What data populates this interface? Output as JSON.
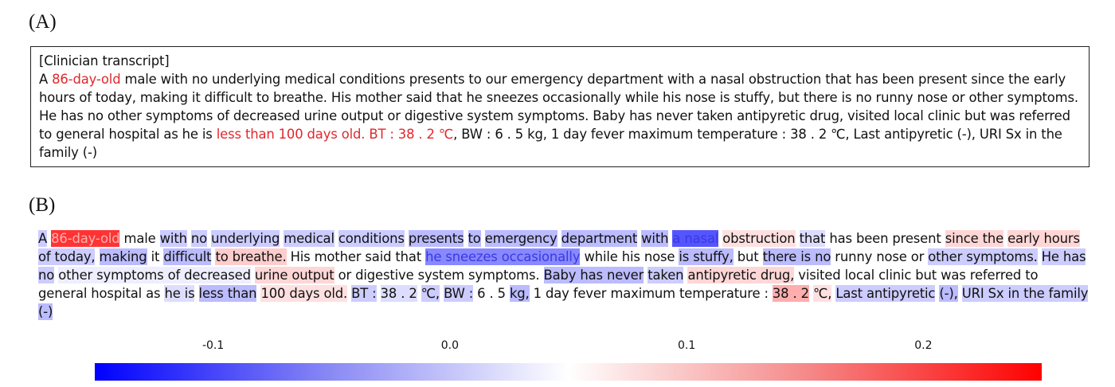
{
  "panel_a": {
    "label": "(A)",
    "header": "[Clinician transcript]",
    "segments": [
      {
        "t": "A ",
        "h": false
      },
      {
        "t": "86-day-old",
        "h": true
      },
      {
        "t": " male with no underlying medical conditions presents to our emergency department with a nasal obstruction that has been present since the early hours of today, making it difficult to breathe. His mother said that he sneezes occasionally while his nose is stuffy, but there is no runny nose or other symptoms. He has no other symptoms of decreased urine output or digestive system symptoms. Baby has never taken antipyretic drug, visited local clinic but was referred to general hospital as he is ",
        "h": false
      },
      {
        "t": "less than 100 days old. BT : 38 . 2 ℃",
        "h": true
      },
      {
        "t": ", BW : 6 . 5 kg, 1 day fever maximum temperature : 38 . 2 ℃, Last antipyretic (-), URI Sx in the family (-)",
        "h": false
      }
    ],
    "highlight_color": "#e0282d"
  },
  "panel_b": {
    "label": "(B)",
    "tokens": [
      {
        "t": "A",
        "s": -0.03
      },
      {
        "t": "86-day-old",
        "s": 0.2
      },
      {
        "t": "male",
        "s": 0
      },
      {
        "t": "with",
        "s": -0.03
      },
      {
        "t": "no",
        "s": -0.03
      },
      {
        "t": "underlying",
        "s": -0.03
      },
      {
        "t": "medical",
        "s": -0.03
      },
      {
        "t": "conditions",
        "s": -0.03
      },
      {
        "t": "presents",
        "s": -0.04
      },
      {
        "t": "to",
        "s": -0.04
      },
      {
        "t": "emergency",
        "s": -0.04
      },
      {
        "t": "department",
        "s": -0.04
      },
      {
        "t": "with",
        "s": -0.04
      },
      {
        "t": "a nasal",
        "s": -0.1
      },
      {
        "t": "obstruction",
        "s": 0.03
      },
      {
        "t": "that",
        "s": -0.02
      },
      {
        "t": "has been present",
        "s": 0
      },
      {
        "t": "since the",
        "s": 0.04
      },
      {
        "t": "early hours",
        "s": 0.04
      },
      {
        "t": "of today,",
        "s": -0.03
      },
      {
        "t": "making",
        "s": -0.04
      },
      {
        "t": "it",
        "s": 0
      },
      {
        "t": "difficult",
        "s": -0.04
      },
      {
        "t": "to breathe.",
        "s": 0.05
      },
      {
        "t": "His mother",
        "s": 0
      },
      {
        "t": "said that",
        "s": 0
      },
      {
        "t": "he sneezes occasionally",
        "s": -0.07
      },
      {
        "t": "while his nose",
        "s": 0
      },
      {
        "t": "is stuffy,",
        "s": -0.04
      },
      {
        "t": "but",
        "s": 0
      },
      {
        "t": "there is no",
        "s": -0.04
      },
      {
        "t": "runny nose or",
        "s": 0
      },
      {
        "t": "other symptoms.",
        "s": -0.03
      },
      {
        "t": "He has no",
        "s": -0.03
      },
      {
        "t": "other symptoms of decreased",
        "s": -0.01
      },
      {
        "t": "urine output",
        "s": 0.04
      },
      {
        "t": "or digestive system symptoms.",
        "s": 0
      },
      {
        "t": "Baby has never",
        "s": -0.04
      },
      {
        "t": "taken",
        "s": -0.03
      },
      {
        "t": "antipyretic drug,",
        "s": 0.04
      },
      {
        "t": "visited",
        "s": 0
      },
      {
        "t": "local clinic but was referred to general hospital as",
        "s": 0
      },
      {
        "t": "he is",
        "s": -0.02
      },
      {
        "t": "less than",
        "s": -0.04
      },
      {
        "t": "100 days old.",
        "s": 0.03
      },
      {
        "t": "BT :",
        "s": -0.03
      },
      {
        "t": "38 . 2",
        "s": -0.02
      },
      {
        "t": "℃,",
        "s": -0.03
      },
      {
        "t": "BW :",
        "s": -0.03
      },
      {
        "t": "6 . 5",
        "s": 0
      },
      {
        "t": "kg,",
        "s": -0.04
      },
      {
        "t": "1 day fever maximum temperature :",
        "s": 0
      },
      {
        "t": "38 . 2",
        "s": 0.08
      },
      {
        "t": "℃,",
        "s": 0.03
      },
      {
        "t": "Last antipyretic",
        "s": -0.03
      },
      {
        "t": "(-),",
        "s": -0.04
      },
      {
        "t": "URI Sx in the family",
        "s": -0.03
      },
      {
        "t": "(-)",
        "s": -0.04
      }
    ]
  },
  "colorbar": {
    "min": -0.15,
    "max": 0.25,
    "ticks": [
      {
        "value": -0.1,
        "label": "-0.1"
      },
      {
        "value": 0.0,
        "label": "0.0"
      },
      {
        "value": 0.1,
        "label": "0.1"
      },
      {
        "value": 0.2,
        "label": "0.2"
      }
    ],
    "colors": {
      "negative": "#0000ff",
      "zero": "#ffffff",
      "positive": "#ff0000"
    }
  }
}
